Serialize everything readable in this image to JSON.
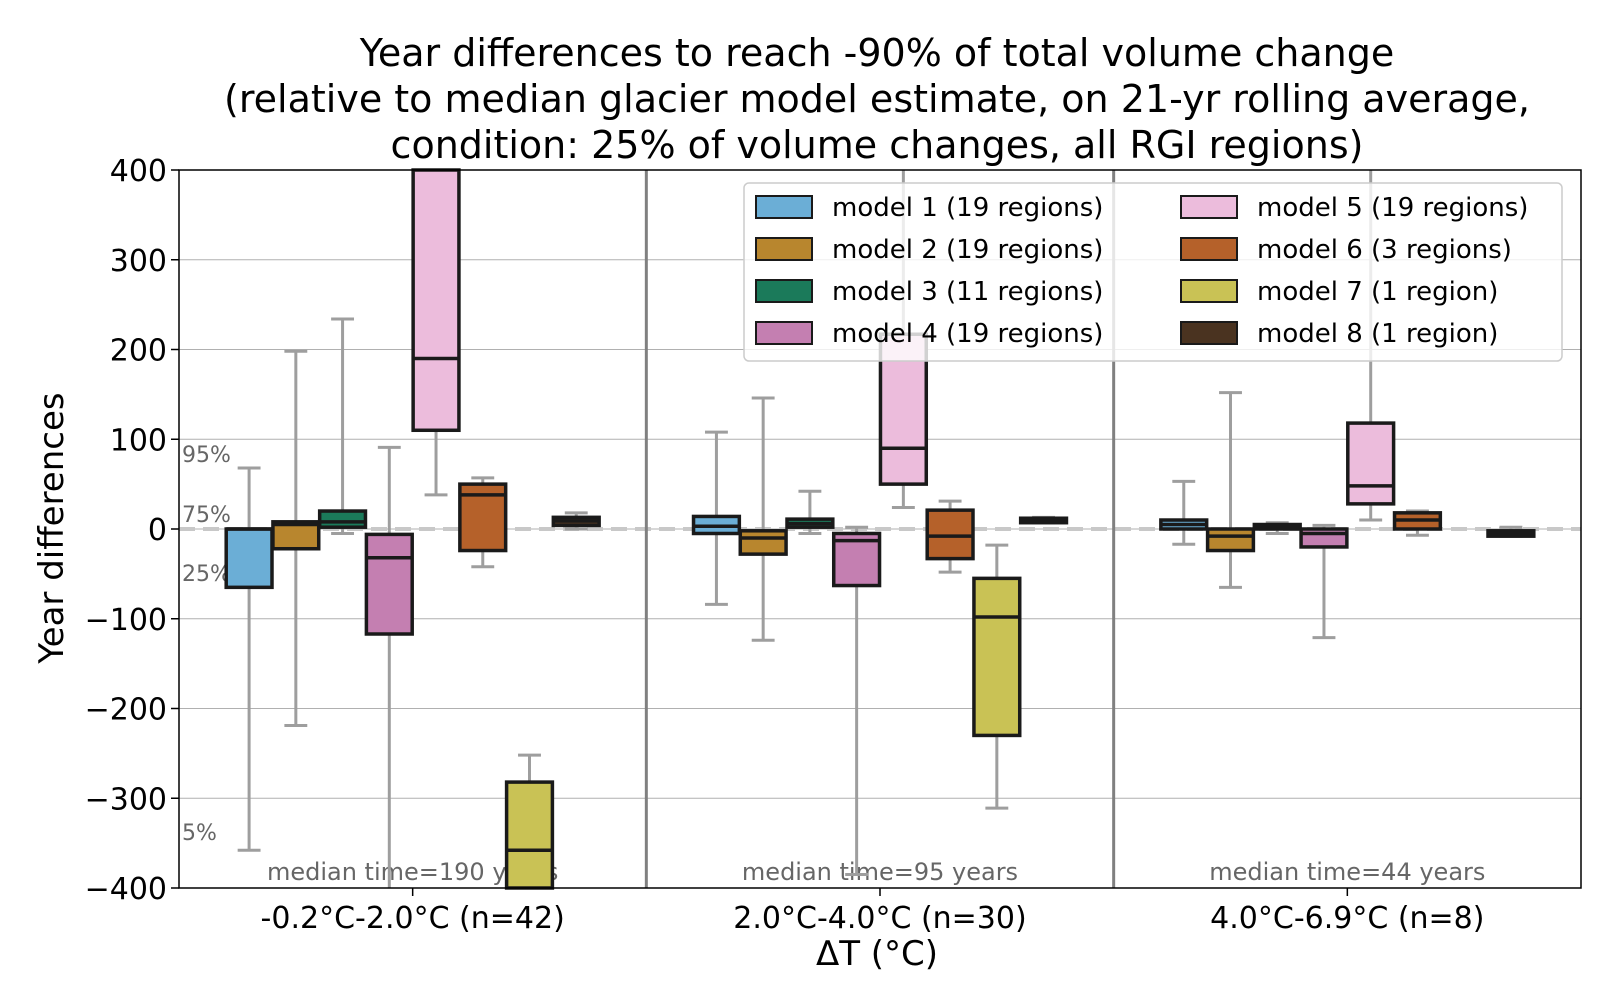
{
  "chart_data": {
    "type": "box",
    "title": [
      "Year differences to reach -90% of total volume change",
      "(relative to median glacier model estimate, on 21-yr rolling average,",
      "condition: 25% of volume changes, all RGI regions)"
    ],
    "xlabel": "ΔT (°C)",
    "ylabel": "Year differences",
    "ylim": [
      -400,
      400
    ],
    "yticks": [
      -400,
      -300,
      -200,
      -100,
      0,
      100,
      200,
      300,
      400
    ],
    "ytick_labels": [
      "−400",
      "−300",
      "−200",
      "−100",
      "0",
      "100",
      "200",
      "300",
      "400"
    ],
    "grid": true,
    "legend_position": "top-right",
    "percentile_labels": [
      "95%",
      "75%",
      "25%",
      "5%"
    ],
    "percentile_values": [
      95,
      75,
      25,
      5
    ],
    "groups": [
      {
        "label": "-0.2°C-2.0°C (n=42)",
        "median_time": "median time=190 years"
      },
      {
        "label": "2.0°C-4.0°C (n=30)",
        "median_time": "median time=95 years"
      },
      {
        "label": "4.0°C-6.9°C (n=8)",
        "median_time": "median time=44 years"
      }
    ],
    "series": [
      {
        "name": "model 1 (19 regions)",
        "color": "#6baed6",
        "boxes": [
          {
            "whislo": -358,
            "q1": -65,
            "med": 0,
            "q3": 0,
            "whishi": 68
          },
          {
            "whislo": -84,
            "q1": -5,
            "med": 3,
            "q3": 14,
            "whishi": 108
          },
          {
            "whislo": -17,
            "q1": 0,
            "med": 5,
            "q3": 10,
            "whishi": 53
          }
        ]
      },
      {
        "name": "model 2 (19 regions)",
        "color": "#b8862e",
        "boxes": [
          {
            "whislo": -219,
            "q1": -22,
            "med": 5,
            "q3": 8,
            "whishi": 198
          },
          {
            "whislo": -124,
            "q1": -28,
            "med": -10,
            "q3": -2,
            "whishi": 146
          },
          {
            "whislo": -65,
            "q1": -24,
            "med": -8,
            "q3": 0,
            "whishi": 152
          }
        ]
      },
      {
        "name": "model 3 (11 regions)",
        "color": "#1b7a5a",
        "boxes": [
          {
            "whislo": -5,
            "q1": 2,
            "med": 8,
            "q3": 20,
            "whishi": 234
          },
          {
            "whislo": -5,
            "q1": 2,
            "med": 6,
            "q3": 11,
            "whishi": 42
          },
          {
            "whislo": -5,
            "q1": 0,
            "med": 3,
            "q3": 5,
            "whishi": 7
          }
        ]
      },
      {
        "name": "model 4 (19 regions)",
        "color": "#c47fb1",
        "boxes": [
          {
            "whislo": -400,
            "q1": -117,
            "med": -32,
            "q3": -6,
            "whishi": 91
          },
          {
            "whislo": -385,
            "q1": -63,
            "med": -13,
            "q3": -5,
            "whishi": 2
          },
          {
            "whislo": -121,
            "q1": -20,
            "med": -5,
            "q3": 0,
            "whishi": 4
          }
        ]
      },
      {
        "name": "model 5 (19 regions)",
        "color": "#ecbcdc",
        "boxes": [
          {
            "whislo": 38,
            "q1": 110,
            "med": 190,
            "q3": 400,
            "whishi": 400
          },
          {
            "whislo": 24,
            "q1": 50,
            "med": 90,
            "q3": 217,
            "whishi": 400
          },
          {
            "whislo": 10,
            "q1": 28,
            "med": 48,
            "q3": 118,
            "whishi": 400
          }
        ]
      },
      {
        "name": "model 6 (3 regions)",
        "color": "#b5612a",
        "boxes": [
          {
            "whislo": -42,
            "q1": -24,
            "med": 38,
            "q3": 50,
            "whishi": 57
          },
          {
            "whislo": -48,
            "q1": -33,
            "med": -8,
            "q3": 21,
            "whishi": 31
          },
          {
            "whislo": -7,
            "q1": 0,
            "med": 10,
            "q3": 18,
            "whishi": 20
          }
        ]
      },
      {
        "name": "model 7 (1 region)",
        "color": "#c9c255",
        "boxes": [
          {
            "whislo": -400,
            "q1": -400,
            "med": -358,
            "q3": -282,
            "whishi": -252
          },
          {
            "whislo": -311,
            "q1": -230,
            "med": -98,
            "q3": -55,
            "whishi": -18
          },
          null
        ]
      },
      {
        "name": "model 8 (1 region)",
        "color": "#4a3320",
        "boxes": [
          {
            "whislo": 0,
            "q1": 4,
            "med": 9,
            "q3": 13,
            "whishi": 18
          },
          {
            "whislo": 7,
            "q1": 7,
            "med": 10,
            "q3": 12,
            "whishi": 13
          },
          {
            "whislo": -8,
            "q1": -8,
            "med": -5,
            "q3": -2,
            "whishi": 2
          }
        ]
      }
    ]
  }
}
